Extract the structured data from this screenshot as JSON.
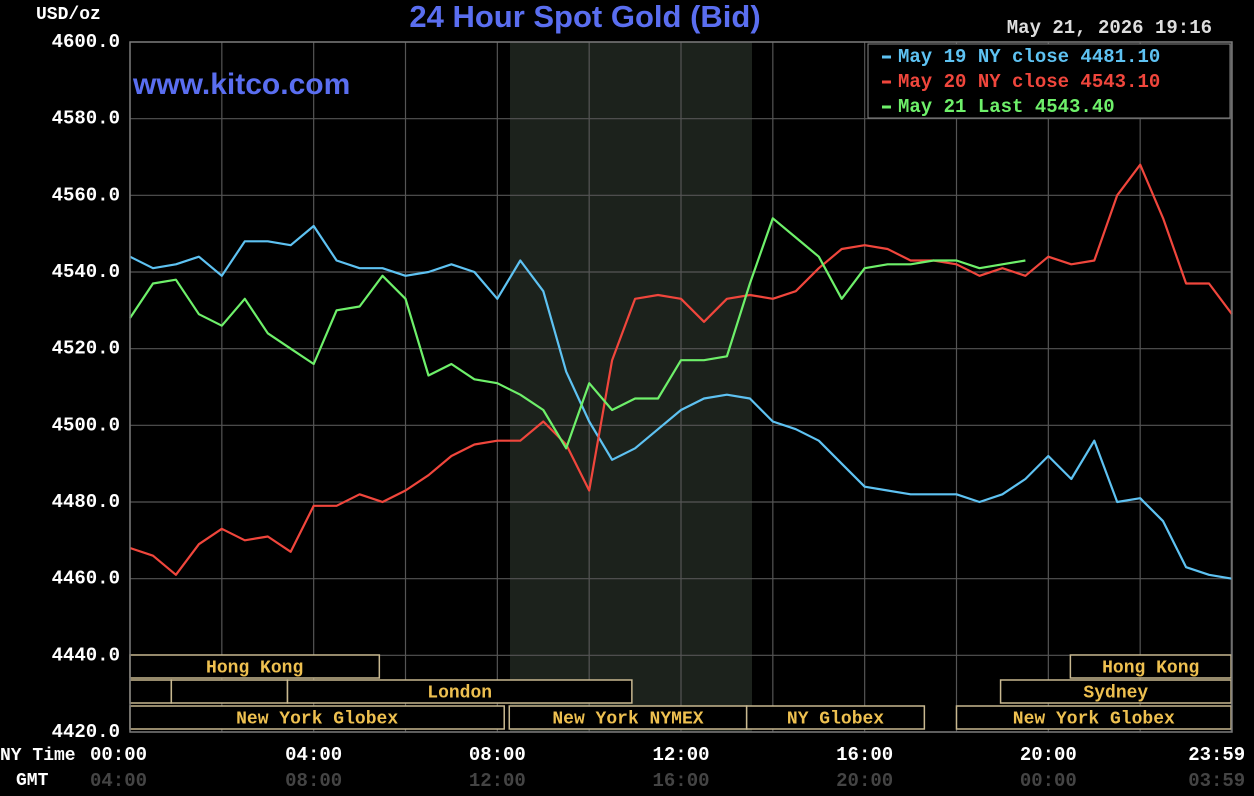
{
  "chart_data": {
    "type": "line",
    "title": "24 Hour Spot Gold (Bid)",
    "y_label": "USD/oz",
    "x_label": "NY Time",
    "x2_label": "GMT",
    "watermark": "www.kitco.com",
    "timestamp": "May 21, 2026 19:16",
    "x": [
      0,
      0.5,
      1,
      1.5,
      2,
      2.5,
      3,
      3.5,
      4,
      4.5,
      5,
      5.5,
      6,
      6.5,
      7,
      7.5,
      8,
      8.5,
      9,
      9.5,
      10,
      10.5,
      11,
      11.5,
      12,
      12.5,
      13,
      13.5,
      14,
      14.5,
      15,
      15.5,
      16,
      16.5,
      17,
      17.5,
      18,
      18.5,
      19,
      19.5,
      20,
      20.5,
      21,
      21.5,
      22,
      22.5,
      23,
      23.5,
      24
    ],
    "series": [
      {
        "name": "May 19 NY close 4481.10",
        "color": "#5ec2f2",
        "values": [
          4544,
          4541,
          4542,
          4544,
          4539,
          4548,
          4548,
          4547,
          4552,
          4543,
          4541,
          4541,
          4539,
          4540,
          4542,
          4540,
          4533,
          4543,
          4535,
          4514,
          4501,
          4491,
          4494,
          4499,
          4504,
          4507,
          4508,
          4507,
          4501,
          4499,
          4496,
          4490,
          4484,
          4483,
          4482,
          4482,
          4482,
          4480,
          4482,
          4486,
          4492,
          4486,
          4496,
          4480,
          4481,
          4475,
          4463,
          4461,
          4460
        ]
      },
      {
        "name": "May 20 NY close 4543.10",
        "color": "#f0463c",
        "values": [
          4468,
          4466,
          4461,
          4469,
          4473,
          4470,
          4471,
          4467,
          4479,
          4479,
          4482,
          4480,
          4483,
          4487,
          4492,
          4495,
          4496,
          4496,
          4501,
          4495,
          4483,
          4517,
          4533,
          4534,
          4533,
          4527,
          4533,
          4534,
          4533,
          4535,
          4541,
          4546,
          4547,
          4546,
          4543,
          4543,
          4542,
          4539,
          4541,
          4539,
          4544,
          4542,
          4543,
          4560,
          4568,
          4554,
          4537,
          4537,
          4529
        ]
      },
      {
        "name": "May 21 Last 4543.40",
        "color": "#6ef06a",
        "values": [
          4528,
          4537,
          4538,
          4529,
          4526,
          4533,
          4524,
          4520,
          4516,
          4530,
          4531,
          4539,
          4533,
          4513,
          4516,
          4512,
          4511,
          4508,
          4504,
          4494,
          4511,
          4504,
          4507,
          4507,
          4517,
          4517,
          4518,
          4537,
          4554,
          4549,
          4544,
          4533,
          4541,
          4542,
          4542,
          4543,
          4543,
          4541,
          4542,
          4543,
          null,
          null,
          null,
          null,
          null,
          null,
          null,
          null,
          null
        ]
      }
    ],
    "xlim": [
      0,
      24
    ],
    "xticks": [
      {
        "value": 0,
        "label": "00:00"
      },
      {
        "value": 2,
        "label": null
      },
      {
        "value": 4,
        "label": "04:00"
      },
      {
        "value": 6,
        "label": null
      },
      {
        "value": 8,
        "label": "08:00"
      },
      {
        "value": 10,
        "label": null
      },
      {
        "value": 12,
        "label": "12:00"
      },
      {
        "value": 14,
        "label": null
      },
      {
        "value": 16,
        "label": "16:00"
      },
      {
        "value": 18,
        "label": null
      },
      {
        "value": 20,
        "label": "20:00"
      },
      {
        "value": 22,
        "label": null
      },
      {
        "value": 23.983,
        "label": "23:59"
      }
    ],
    "x2ticks": [
      "04:00",
      "08:00",
      "12:00",
      "16:00",
      "20:00",
      "00:00",
      "03:59"
    ],
    "ylim": [
      4420,
      4600
    ],
    "yticks": [
      {
        "value": 4420,
        "label": "4420.0"
      },
      {
        "value": 4440,
        "label": "4440.0"
      },
      {
        "value": 4460,
        "label": "4460.0"
      },
      {
        "value": 4480,
        "label": "4480.0"
      },
      {
        "value": 4500,
        "label": "4500.0"
      },
      {
        "value": 4520,
        "label": "4520.0"
      },
      {
        "value": 4540,
        "label": "4540.0"
      },
      {
        "value": 4560,
        "label": "4560.0"
      },
      {
        "value": 4580,
        "label": "4580.0"
      },
      {
        "value": 4600,
        "label": "4600.0"
      }
    ],
    "grid": true,
    "legend": "top-right",
    "sessions": [
      "Hong Kong",
      "Hong Kong",
      "London",
      "Sydney",
      "New York Globex",
      "New York NYMEX",
      "NY Globex",
      "New York Globex"
    ]
  }
}
